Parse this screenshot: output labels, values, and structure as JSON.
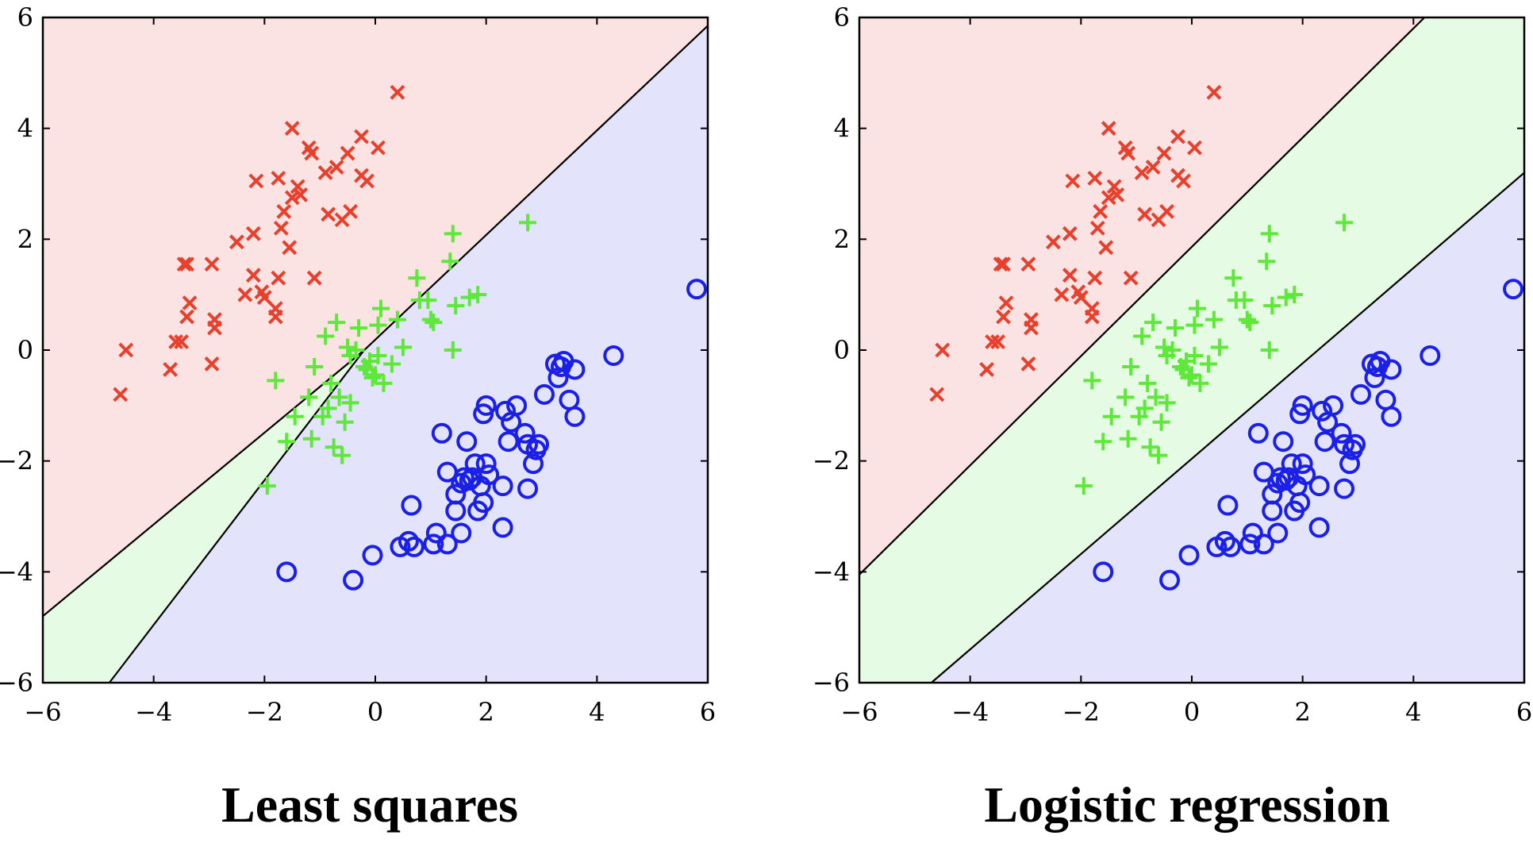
{
  "chart_data": [
    {
      "type": "scatter",
      "title": "Least squares",
      "xlim": [
        -6,
        6
      ],
      "ylim": [
        -6,
        6
      ],
      "xticks": [
        -6,
        -4,
        -2,
        0,
        2,
        4,
        6
      ],
      "yticks": [
        -6,
        -4,
        -2,
        0,
        2,
        4,
        6
      ],
      "xtick_labels": [
        "−6",
        "−4",
        "−2",
        "0",
        "2",
        "4",
        "6"
      ],
      "ytick_labels": [
        "−6",
        "−4",
        "−2",
        "0",
        "2",
        "4",
        "6"
      ],
      "grid": false,
      "regions": [
        {
          "class": "red",
          "color": "#fbe3e3",
          "polygon": [
            [
              -6,
              -4.8
            ],
            [
              -0.2,
              0.0
            ],
            [
              6,
              5.85
            ],
            [
              6,
              6
            ],
            [
              -6,
              6
            ]
          ]
        },
        {
          "class": "green",
          "color": "#e6fbe3",
          "polygon": [
            [
              -6,
              -6
            ],
            [
              -4.8,
              -6
            ],
            [
              -0.2,
              0.0
            ],
            [
              -6,
              -4.8
            ]
          ]
        },
        {
          "class": "blue",
          "color": "#e3e3fb",
          "polygon": [
            [
              -4.8,
              -6
            ],
            [
              6,
              -6
            ],
            [
              6,
              5.85
            ],
            [
              -0.2,
              0.0
            ]
          ]
        }
      ],
      "boundaries": [
        [
          [
            -6,
            -4.8
          ],
          [
            -0.2,
            0.0
          ],
          [
            6,
            5.85
          ]
        ],
        [
          [
            -4.8,
            -6
          ],
          [
            -0.2,
            0.0
          ]
        ]
      ]
    },
    {
      "type": "scatter",
      "title": "Logistic regression",
      "xlim": [
        -6,
        6
      ],
      "ylim": [
        -6,
        6
      ],
      "xticks": [
        -6,
        -4,
        -2,
        0,
        2,
        4,
        6
      ],
      "yticks": [
        -6,
        -4,
        -2,
        0,
        2,
        4,
        6
      ],
      "xtick_labels": [
        "−6",
        "−4",
        "−2",
        "0",
        "2",
        "4",
        "6"
      ],
      "ytick_labels": [
        "−6",
        "−4",
        "−2",
        "0",
        "2",
        "4",
        "6"
      ],
      "grid": false,
      "regions": [
        {
          "class": "red",
          "color": "#fbe3e3",
          "polygon": [
            [
              -6,
              -4.05
            ],
            [
              4.2,
              6
            ],
            [
              -6,
              6
            ]
          ]
        },
        {
          "class": "green",
          "color": "#e6fbe3",
          "polygon": [
            [
              -6,
              -4.05
            ],
            [
              4.2,
              6
            ],
            [
              6,
              6
            ],
            [
              6,
              3.2
            ],
            [
              -4.7,
              -6
            ],
            [
              -6,
              -6
            ]
          ]
        },
        {
          "class": "blue",
          "color": "#e3e3fb",
          "polygon": [
            [
              -4.7,
              -6
            ],
            [
              6,
              3.2
            ],
            [
              6,
              -6
            ]
          ]
        }
      ],
      "boundaries": [
        [
          [
            -6,
            -4.05
          ],
          [
            4.2,
            6
          ]
        ],
        [
          [
            -4.7,
            -6
          ],
          [
            6,
            3.2
          ]
        ]
      ]
    }
  ],
  "series": [
    {
      "marker": "x",
      "color": "#e8402c",
      "points": [
        [
          -4.6,
          -0.8
        ],
        [
          -4.5,
          0.0
        ],
        [
          -3.7,
          -0.35
        ],
        [
          -3.6,
          0.15
        ],
        [
          -3.5,
          0.15
        ],
        [
          -3.45,
          1.55
        ],
        [
          -3.4,
          1.55
        ],
        [
          -3.4,
          0.6
        ],
        [
          -3.35,
          0.85
        ],
        [
          -2.95,
          -0.25
        ],
        [
          -2.9,
          0.4
        ],
        [
          -2.9,
          0.55
        ],
        [
          -2.95,
          1.55
        ],
        [
          -2.5,
          1.95
        ],
        [
          -2.35,
          1.0
        ],
        [
          -2.2,
          2.1
        ],
        [
          -2.2,
          1.35
        ],
        [
          -2.0,
          0.95
        ],
        [
          -2.05,
          1.05
        ],
        [
          -2.15,
          3.05
        ],
        [
          -1.8,
          0.75
        ],
        [
          -1.8,
          0.6
        ],
        [
          -1.75,
          1.3
        ],
        [
          -1.7,
          2.2
        ],
        [
          -1.65,
          2.5
        ],
        [
          -1.75,
          3.1
        ],
        [
          -1.55,
          1.85
        ],
        [
          -1.5,
          2.75
        ],
        [
          -1.5,
          4.0
        ],
        [
          -1.4,
          2.95
        ],
        [
          -1.35,
          2.8
        ],
        [
          -1.2,
          3.65
        ],
        [
          -1.15,
          3.55
        ],
        [
          -1.1,
          1.3
        ],
        [
          -0.9,
          3.2
        ],
        [
          -0.85,
          2.45
        ],
        [
          -0.7,
          3.3
        ],
        [
          -0.6,
          2.35
        ],
        [
          -0.5,
          3.55
        ],
        [
          -0.45,
          2.5
        ],
        [
          -0.25,
          3.85
        ],
        [
          -0.25,
          3.15
        ],
        [
          -0.15,
          3.05
        ],
        [
          0.05,
          3.65
        ],
        [
          0.4,
          4.65
        ]
      ]
    },
    {
      "marker": "+",
      "color": "#5ee83a",
      "points": [
        [
          -1.95,
          -2.45
        ],
        [
          -1.8,
          -0.55
        ],
        [
          -1.6,
          -1.65
        ],
        [
          -1.45,
          -1.2
        ],
        [
          -1.2,
          -0.85
        ],
        [
          -1.15,
          -1.6
        ],
        [
          -1.1,
          -0.3
        ],
        [
          -0.95,
          -1.2
        ],
        [
          -0.9,
          0.25
        ],
        [
          -0.85,
          -1.05
        ],
        [
          -0.8,
          -0.6
        ],
        [
          -0.75,
          -1.75
        ],
        [
          -0.7,
          0.5
        ],
        [
          -0.65,
          -0.85
        ],
        [
          -0.6,
          -1.9
        ],
        [
          -0.55,
          -1.3
        ],
        [
          -0.5,
          0.05
        ],
        [
          -0.45,
          -0.95
        ],
        [
          -0.45,
          -0.1
        ],
        [
          -0.35,
          0.0
        ],
        [
          -0.3,
          0.4
        ],
        [
          -0.2,
          -0.3
        ],
        [
          -0.15,
          -0.35
        ],
        [
          -0.1,
          -0.2
        ],
        [
          -0.05,
          -0.5
        ],
        [
          0.0,
          -0.45
        ],
        [
          0.05,
          0.45
        ],
        [
          0.05,
          -0.1
        ],
        [
          0.1,
          0.75
        ],
        [
          0.15,
          -0.6
        ],
        [
          0.3,
          -0.25
        ],
        [
          0.4,
          0.55
        ],
        [
          0.5,
          0.05
        ],
        [
          0.75,
          1.3
        ],
        [
          0.8,
          0.9
        ],
        [
          0.95,
          0.9
        ],
        [
          1.0,
          0.55
        ],
        [
          1.05,
          0.5
        ],
        [
          1.35,
          1.6
        ],
        [
          1.4,
          0.0
        ],
        [
          1.4,
          2.1
        ],
        [
          1.45,
          0.8
        ],
        [
          1.7,
          0.95
        ],
        [
          1.85,
          1.0
        ],
        [
          2.75,
          2.3
        ]
      ]
    },
    {
      "marker": "o",
      "color": "#1a20e8",
      "points": [
        [
          -1.6,
          -4.0
        ],
        [
          -0.4,
          -4.15
        ],
        [
          -0.05,
          -3.7
        ],
        [
          0.45,
          -3.55
        ],
        [
          0.6,
          -3.45
        ],
        [
          0.7,
          -3.55
        ],
        [
          0.65,
          -2.8
        ],
        [
          1.05,
          -3.5
        ],
        [
          1.1,
          -3.3
        ],
        [
          1.2,
          -1.5
        ],
        [
          1.3,
          -3.5
        ],
        [
          1.3,
          -2.2
        ],
        [
          1.45,
          -2.6
        ],
        [
          1.45,
          -2.9
        ],
        [
          1.55,
          -3.3
        ],
        [
          1.55,
          -2.4
        ],
        [
          1.6,
          -2.3
        ],
        [
          1.65,
          -1.65
        ],
        [
          1.7,
          -2.35
        ],
        [
          1.75,
          -2.3
        ],
        [
          1.8,
          -2.05
        ],
        [
          1.85,
          -2.9
        ],
        [
          1.9,
          -2.45
        ],
        [
          1.95,
          -2.75
        ],
        [
          1.95,
          -1.15
        ],
        [
          2.0,
          -1.0
        ],
        [
          2.0,
          -2.05
        ],
        [
          2.05,
          -2.25
        ],
        [
          2.3,
          -2.45
        ],
        [
          2.3,
          -3.2
        ],
        [
          2.35,
          -1.1
        ],
        [
          2.4,
          -1.65
        ],
        [
          2.45,
          -1.3
        ],
        [
          2.55,
          -1.0
        ],
        [
          2.7,
          -1.5
        ],
        [
          2.75,
          -2.5
        ],
        [
          2.75,
          -1.7
        ],
        [
          2.85,
          -2.05
        ],
        [
          2.9,
          -1.8
        ],
        [
          2.95,
          -1.7
        ],
        [
          3.05,
          -0.8
        ],
        [
          3.25,
          -0.25
        ],
        [
          3.3,
          -0.5
        ],
        [
          3.35,
          -0.3
        ],
        [
          3.4,
          -0.2
        ],
        [
          3.5,
          -0.9
        ],
        [
          3.6,
          -0.35
        ],
        [
          3.6,
          -1.2
        ],
        [
          4.3,
          -0.1
        ],
        [
          5.8,
          1.1
        ]
      ]
    }
  ]
}
